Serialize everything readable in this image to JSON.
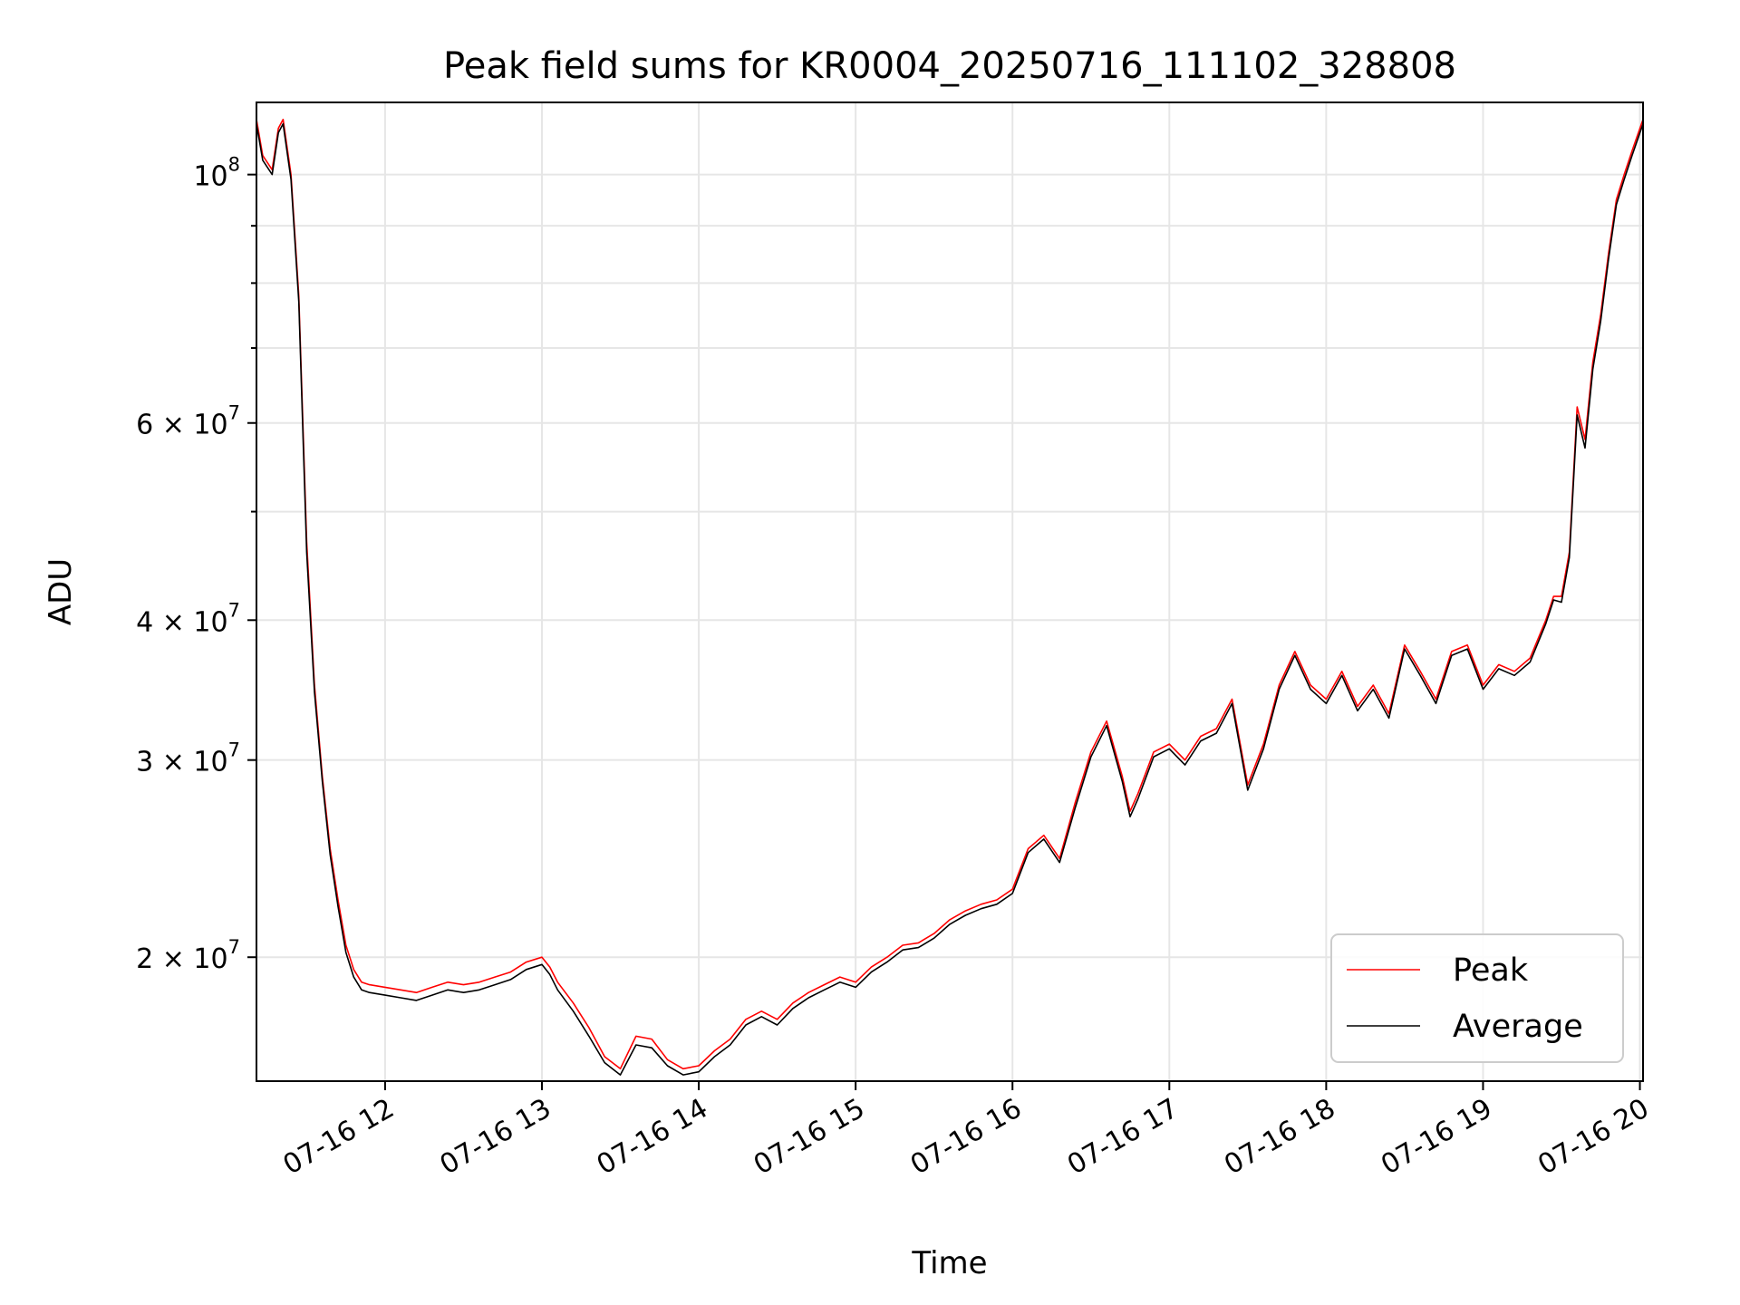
{
  "chart_data": {
    "type": "line",
    "title": "Peak field sums for KR0004_20250716_111102_328808",
    "xlabel": "Time",
    "ylabel": "ADU",
    "yscale": "log",
    "ylim": [
      15500000,
      116000000
    ],
    "x_range_hours": [
      11.18,
      20.02
    ],
    "x_ticks": [
      {
        "label": "07-16 12",
        "hour": 12
      },
      {
        "label": "07-16 13",
        "hour": 13
      },
      {
        "label": "07-16 14",
        "hour": 14
      },
      {
        "label": "07-16 15",
        "hour": 15
      },
      {
        "label": "07-16 16",
        "hour": 16
      },
      {
        "label": "07-16 17",
        "hour": 17
      },
      {
        "label": "07-16 18",
        "hour": 18
      },
      {
        "label": "07-16 19",
        "hour": 19
      },
      {
        "label": "07-16 20",
        "hour": 20
      }
    ],
    "y_ticks": [
      {
        "base": "2 × 10",
        "exp": "7",
        "value": 20000000
      },
      {
        "base": "3 × 10",
        "exp": "7",
        "value": 30000000
      },
      {
        "base": "4 × 10",
        "exp": "7",
        "value": 40000000
      },
      {
        "base": "6 × 10",
        "exp": "7",
        "value": 60000000
      },
      {
        "base": "10",
        "exp": "8",
        "value": 100000000
      }
    ],
    "grid": true,
    "legend_position": "lower right",
    "series": [
      {
        "name": "Peak",
        "color": "#ff0000",
        "x_hours": [
          11.18,
          11.22,
          11.28,
          11.32,
          11.35,
          11.4,
          11.45,
          11.5,
          11.55,
          11.6,
          11.65,
          11.7,
          11.75,
          11.8,
          11.85,
          11.9,
          12.0,
          12.1,
          12.2,
          12.3,
          12.4,
          12.5,
          12.6,
          12.7,
          12.8,
          12.9,
          13.0,
          13.05,
          13.1,
          13.2,
          13.3,
          13.4,
          13.5,
          13.6,
          13.7,
          13.8,
          13.9,
          14.0,
          14.1,
          14.2,
          14.3,
          14.4,
          14.5,
          14.6,
          14.7,
          14.8,
          14.9,
          15.0,
          15.1,
          15.2,
          15.3,
          15.4,
          15.5,
          15.6,
          15.7,
          15.8,
          15.9,
          16.0,
          16.1,
          16.2,
          16.3,
          16.4,
          16.5,
          16.6,
          16.7,
          16.75,
          16.8,
          16.9,
          17.0,
          17.1,
          17.2,
          17.3,
          17.4,
          17.5,
          17.6,
          17.7,
          17.8,
          17.9,
          18.0,
          18.1,
          18.2,
          18.3,
          18.4,
          18.5,
          18.6,
          18.7,
          18.8,
          18.9,
          19.0,
          19.1,
          19.2,
          19.3,
          19.4,
          19.45,
          19.5,
          19.55,
          19.6,
          19.65,
          19.7,
          19.75,
          19.8,
          19.85,
          19.9,
          19.95,
          20.02
        ],
        "values": [
          112000000,
          104000000,
          101000000,
          110000000,
          112000000,
          100000000,
          78000000,
          47000000,
          35000000,
          29000000,
          25000000,
          22500000,
          20500000,
          19500000,
          19000000,
          18900000,
          18800000,
          18700000,
          18600000,
          18800000,
          19000000,
          18900000,
          19000000,
          19200000,
          19400000,
          19800000,
          20000000,
          19600000,
          19000000,
          18200000,
          17300000,
          16300000,
          15900000,
          17000000,
          16900000,
          16200000,
          15900000,
          16000000,
          16500000,
          16900000,
          17600000,
          17900000,
          17600000,
          18200000,
          18600000,
          18900000,
          19200000,
          19000000,
          19600000,
          20000000,
          20500000,
          20600000,
          21000000,
          21600000,
          22000000,
          22300000,
          22500000,
          23000000,
          25000000,
          25700000,
          24500000,
          27500000,
          30500000,
          32500000,
          29000000,
          27000000,
          28000000,
          30500000,
          31000000,
          30000000,
          31500000,
          32000000,
          34000000,
          28500000,
          31000000,
          35000000,
          37500000,
          35000000,
          34000000,
          36000000,
          33500000,
          35000000,
          33000000,
          38000000,
          36000000,
          34000000,
          37500000,
          38000000,
          35000000,
          36500000,
          36000000,
          37000000,
          40000000,
          42000000,
          42000000,
          46000000,
          62000000,
          58000000,
          68000000,
          75000000,
          85000000,
          95000000,
          100000000,
          105000000,
          112000000
        ]
      },
      {
        "name": "Average",
        "color": "#000000",
        "x_hours": [
          11.18,
          11.22,
          11.28,
          11.32,
          11.35,
          11.4,
          11.45,
          11.5,
          11.55,
          11.6,
          11.65,
          11.7,
          11.75,
          11.8,
          11.85,
          11.9,
          12.0,
          12.1,
          12.2,
          12.3,
          12.4,
          12.5,
          12.6,
          12.7,
          12.8,
          12.9,
          13.0,
          13.05,
          13.1,
          13.2,
          13.3,
          13.4,
          13.5,
          13.6,
          13.7,
          13.8,
          13.9,
          14.0,
          14.1,
          14.2,
          14.3,
          14.4,
          14.5,
          14.6,
          14.7,
          14.8,
          14.9,
          15.0,
          15.1,
          15.2,
          15.3,
          15.4,
          15.5,
          15.6,
          15.7,
          15.8,
          15.9,
          16.0,
          16.1,
          16.2,
          16.3,
          16.4,
          16.5,
          16.6,
          16.7,
          16.75,
          16.8,
          16.9,
          17.0,
          17.1,
          17.2,
          17.3,
          17.4,
          17.5,
          17.6,
          17.7,
          17.8,
          17.9,
          18.0,
          18.1,
          18.2,
          18.3,
          18.4,
          18.5,
          18.6,
          18.7,
          18.8,
          18.9,
          19.0,
          19.1,
          19.2,
          19.3,
          19.4,
          19.45,
          19.5,
          19.55,
          19.6,
          19.65,
          19.7,
          19.75,
          19.8,
          19.85,
          19.9,
          19.95,
          20.02
        ],
        "values": [
          111000000,
          103000000,
          100000000,
          109000000,
          111000000,
          99000000,
          77000000,
          46000000,
          34500000,
          28700000,
          24700000,
          22200000,
          20200000,
          19200000,
          18700000,
          18600000,
          18500000,
          18400000,
          18300000,
          18500000,
          18700000,
          18600000,
          18700000,
          18900000,
          19100000,
          19500000,
          19700000,
          19300000,
          18700000,
          17900000,
          17000000,
          16100000,
          15700000,
          16700000,
          16600000,
          16000000,
          15700000,
          15800000,
          16300000,
          16700000,
          17400000,
          17700000,
          17400000,
          18000000,
          18400000,
          18700000,
          19000000,
          18800000,
          19400000,
          19800000,
          20300000,
          20400000,
          20800000,
          21400000,
          21800000,
          22100000,
          22300000,
          22800000,
          24800000,
          25500000,
          24300000,
          27200000,
          30200000,
          32200000,
          28700000,
          26700000,
          27700000,
          30200000,
          30700000,
          29700000,
          31200000,
          31700000,
          33700000,
          28200000,
          30700000,
          34700000,
          37200000,
          34700000,
          33700000,
          35700000,
          33200000,
          34700000,
          32700000,
          37700000,
          35700000,
          33700000,
          37200000,
          37700000,
          34700000,
          36200000,
          35700000,
          36700000,
          39700000,
          41700000,
          41500000,
          45500000,
          61000000,
          57000000,
          67000000,
          74000000,
          84000000,
          94000000,
          99000000,
          104000000,
          111000000
        ]
      }
    ]
  }
}
